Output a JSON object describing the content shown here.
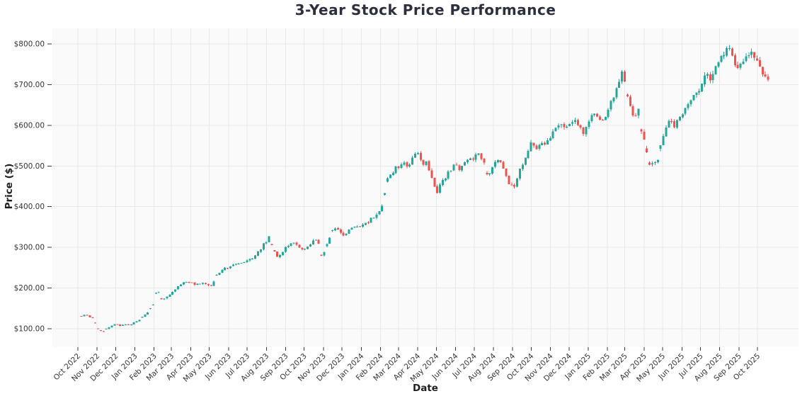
{
  "title": "3-Year Stock Price Performance",
  "chart_data": {
    "type": "candlestick",
    "title": "3-Year Stock Price Performance",
    "xlabel": "Date",
    "ylabel": "Price ($)",
    "legend": "none",
    "grid": true,
    "plot_bg_color": "#fafafa",
    "grid_color": "#e8e8e8",
    "tick_color": "#3a3a3a",
    "tick_label_color": "#333333",
    "up_color": "#26a69a",
    "down_color": "#ef5350",
    "ylim": [
      55,
      838
    ],
    "x_range_days": [
      -41,
      1162
    ],
    "y_ticks": [
      {
        "label": "$100.00",
        "value": 100
      },
      {
        "label": "$200.00",
        "value": 200
      },
      {
        "label": "$300.00",
        "value": 300
      },
      {
        "label": "$400.00",
        "value": 400
      },
      {
        "label": "$500.00",
        "value": 500
      },
      {
        "label": "$600.00",
        "value": 600
      },
      {
        "label": "$700.00",
        "value": 700
      },
      {
        "label": "$800.00",
        "value": 800
      }
    ],
    "x_ticks": [
      {
        "label": "Oct 2022",
        "day": 0
      },
      {
        "label": "Nov 2022",
        "day": 31
      },
      {
        "label": "Dec 2022",
        "day": 61
      },
      {
        "label": "Jan 2023",
        "day": 92
      },
      {
        "label": "Feb 2023",
        "day": 123
      },
      {
        "label": "Mar 2023",
        "day": 151
      },
      {
        "label": "Apr 2023",
        "day": 182
      },
      {
        "label": "May 2023",
        "day": 212
      },
      {
        "label": "Jun 2023",
        "day": 243
      },
      {
        "label": "Jul 2023",
        "day": 273
      },
      {
        "label": "Aug 2023",
        "day": 304
      },
      {
        "label": "Sep 2023",
        "day": 335
      },
      {
        "label": "Oct 2023",
        "day": 365
      },
      {
        "label": "Nov 2023",
        "day": 396
      },
      {
        "label": "Dec 2023",
        "day": 426
      },
      {
        "label": "Jan 2024",
        "day": 457
      },
      {
        "label": "Feb 2024",
        "day": 488
      },
      {
        "label": "Mar 2024",
        "day": 517
      },
      {
        "label": "Apr 2024",
        "day": 548
      },
      {
        "label": "May 2024",
        "day": 578
      },
      {
        "label": "Jun 2024",
        "day": 609
      },
      {
        "label": "Jul 2024",
        "day": 639
      },
      {
        "label": "Aug 2024",
        "day": 670
      },
      {
        "label": "Sep 2024",
        "day": 701
      },
      {
        "label": "Oct 2024",
        "day": 731
      },
      {
        "label": "Nov 2024",
        "day": 762
      },
      {
        "label": "Dec 2024",
        "day": 792
      },
      {
        "label": "Jan 2025",
        "day": 823
      },
      {
        "label": "Feb 2025",
        "day": 854
      },
      {
        "label": "Mar 2025",
        "day": 882
      },
      {
        "label": "Apr 2025",
        "day": 913
      },
      {
        "label": "May 2025",
        "day": 943
      },
      {
        "label": "Jun 2025",
        "day": 974
      },
      {
        "label": "Jul 2025",
        "day": 1004
      },
      {
        "label": "Aug 2025",
        "day": 1035
      },
      {
        "label": "Sep 2025",
        "day": 1066
      },
      {
        "label": "Oct 2025",
        "day": 1096
      }
    ],
    "price_anchors_day_price": [
      [
        6,
        131
      ],
      [
        10,
        135
      ],
      [
        14,
        133
      ],
      [
        19,
        130
      ],
      [
        24,
        127
      ],
      [
        31,
        103
      ],
      [
        36,
        96
      ],
      [
        40,
        92
      ],
      [
        46,
        100
      ],
      [
        53,
        107
      ],
      [
        61,
        112
      ],
      [
        68,
        108
      ],
      [
        76,
        111
      ],
      [
        84,
        110
      ],
      [
        92,
        116
      ],
      [
        100,
        124
      ],
      [
        107,
        133
      ],
      [
        114,
        144
      ],
      [
        121,
        154
      ],
      [
        125,
        186
      ],
      [
        129,
        193
      ],
      [
        135,
        173
      ],
      [
        141,
        177
      ],
      [
        147,
        183
      ],
      [
        151,
        188
      ],
      [
        158,
        198
      ],
      [
        166,
        209
      ],
      [
        174,
        215
      ],
      [
        182,
        214
      ],
      [
        189,
        207
      ],
      [
        197,
        212
      ],
      [
        205,
        211
      ],
      [
        212,
        208
      ],
      [
        217,
        204
      ],
      [
        222,
        231
      ],
      [
        229,
        239
      ],
      [
        236,
        246
      ],
      [
        243,
        251
      ],
      [
        251,
        257
      ],
      [
        260,
        263
      ],
      [
        267,
        262
      ],
      [
        273,
        266
      ],
      [
        282,
        274
      ],
      [
        291,
        289
      ],
      [
        298,
        306
      ],
      [
        304,
        316
      ],
      [
        309,
        326
      ],
      [
        315,
        299
      ],
      [
        320,
        273
      ],
      [
        327,
        283
      ],
      [
        335,
        300
      ],
      [
        343,
        309
      ],
      [
        351,
        311
      ],
      [
        358,
        297
      ],
      [
        365,
        294
      ],
      [
        372,
        306
      ],
      [
        379,
        316
      ],
      [
        385,
        322
      ],
      [
        390,
        303
      ],
      [
        394,
        273
      ],
      [
        400,
        302
      ],
      [
        407,
        330
      ],
      [
        415,
        348
      ],
      [
        423,
        339
      ],
      [
        430,
        331
      ],
      [
        438,
        343
      ],
      [
        448,
        351
      ],
      [
        457,
        355
      ],
      [
        465,
        362
      ],
      [
        473,
        371
      ],
      [
        481,
        379
      ],
      [
        489,
        398
      ],
      [
        493,
        401
      ],
      [
        497,
        467
      ],
      [
        502,
        477
      ],
      [
        508,
        486
      ],
      [
        517,
        499
      ],
      [
        524,
        511
      ],
      [
        530,
        494
      ],
      [
        537,
        514
      ],
      [
        544,
        526
      ],
      [
        550,
        538
      ],
      [
        556,
        503
      ],
      [
        563,
        506
      ],
      [
        569,
        481
      ],
      [
        574,
        456
      ],
      [
        578,
        429
      ],
      [
        584,
        452
      ],
      [
        591,
        471
      ],
      [
        599,
        490
      ],
      [
        609,
        499
      ],
      [
        616,
        489
      ],
      [
        624,
        507
      ],
      [
        632,
        512
      ],
      [
        639,
        521
      ],
      [
        645,
        534
      ],
      [
        652,
        516
      ],
      [
        661,
        473
      ],
      [
        669,
        494
      ],
      [
        677,
        519
      ],
      [
        685,
        501
      ],
      [
        694,
        463
      ],
      [
        701,
        450
      ],
      [
        706,
        447
      ],
      [
        712,
        489
      ],
      [
        720,
        514
      ],
      [
        731,
        553
      ],
      [
        739,
        540
      ],
      [
        748,
        556
      ],
      [
        755,
        546
      ],
      [
        762,
        576
      ],
      [
        770,
        594
      ],
      [
        778,
        601
      ],
      [
        785,
        591
      ],
      [
        792,
        601
      ],
      [
        799,
        614
      ],
      [
        808,
        596
      ],
      [
        816,
        578
      ],
      [
        823,
        612
      ],
      [
        831,
        634
      ],
      [
        838,
        617
      ],
      [
        845,
        601
      ],
      [
        851,
        626
      ],
      [
        858,
        646
      ],
      [
        865,
        667
      ],
      [
        871,
        701
      ],
      [
        877,
        737
      ],
      [
        883,
        702
      ],
      [
        890,
        652
      ],
      [
        897,
        612
      ],
      [
        903,
        641
      ],
      [
        910,
        581
      ],
      [
        917,
        532
      ],
      [
        924,
        487
      ],
      [
        928,
        522
      ],
      [
        933,
        499
      ],
      [
        938,
        542
      ],
      [
        945,
        589
      ],
      [
        953,
        608
      ],
      [
        960,
        598
      ],
      [
        968,
        614
      ],
      [
        974,
        626
      ],
      [
        981,
        644
      ],
      [
        988,
        658
      ],
      [
        996,
        678
      ],
      [
        1004,
        696
      ],
      [
        1012,
        729
      ],
      [
        1020,
        706
      ],
      [
        1030,
        744
      ],
      [
        1039,
        774
      ],
      [
        1048,
        789
      ],
      [
        1056,
        771
      ],
      [
        1064,
        733
      ],
      [
        1070,
        754
      ],
      [
        1078,
        771
      ],
      [
        1085,
        787
      ],
      [
        1092,
        762
      ],
      [
        1100,
        747
      ],
      [
        1108,
        722
      ],
      [
        1113,
        712
      ]
    ],
    "data_start_day": 6,
    "data_end_day": 1113,
    "candle_count": 250,
    "seed": 11
  }
}
